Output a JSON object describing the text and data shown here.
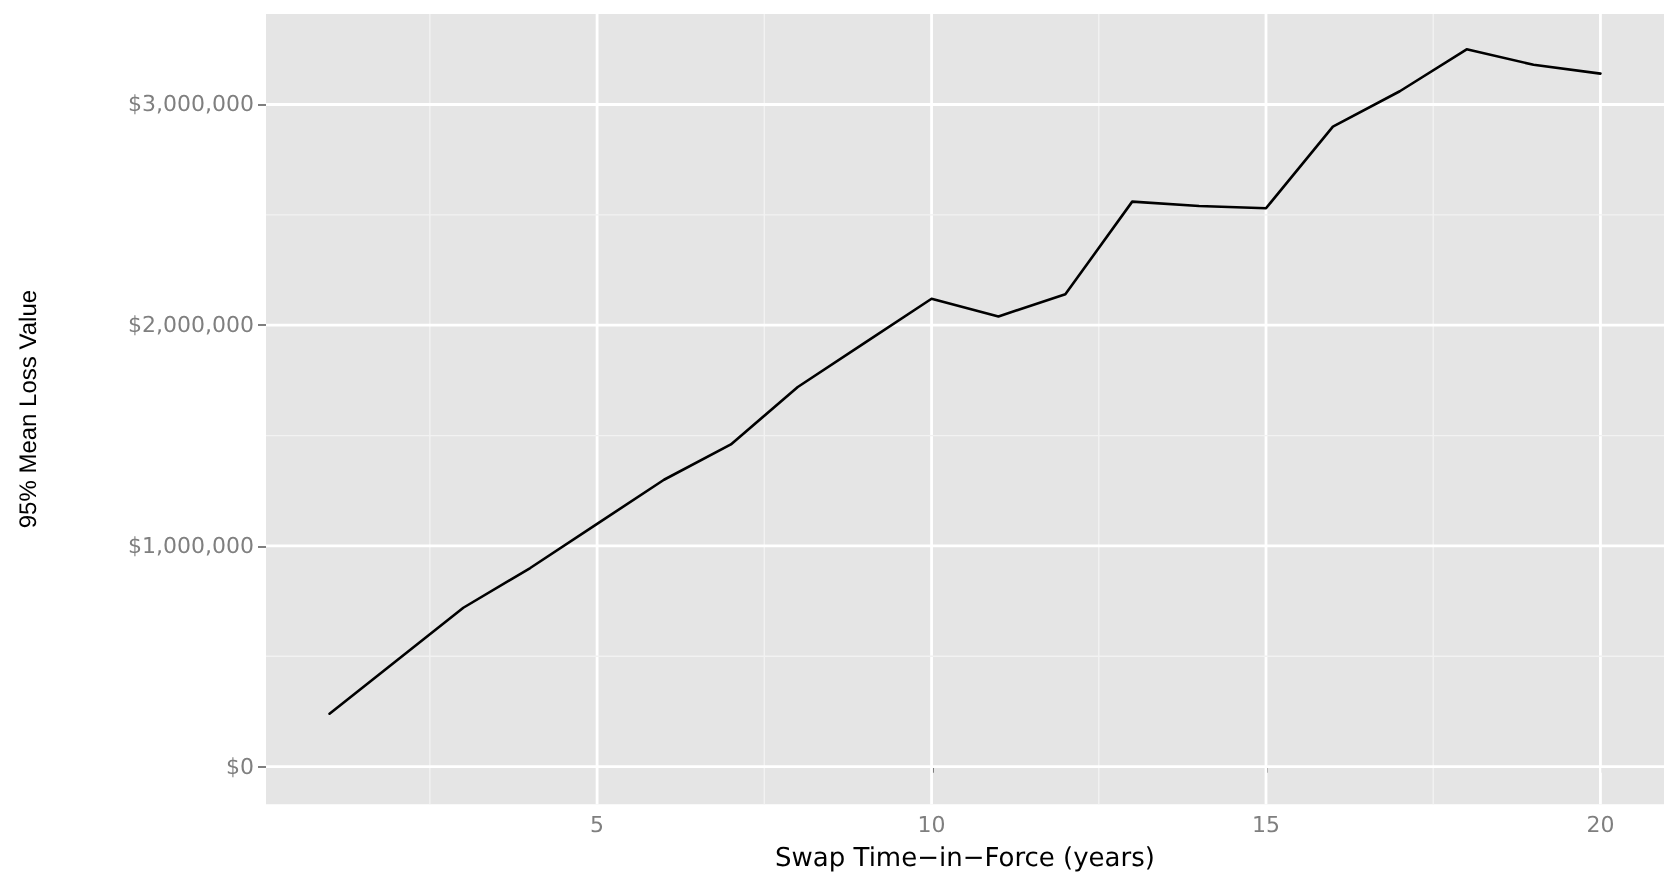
{
  "chart_data": {
    "type": "line",
    "xlabel": "Swap Time−in−Force (years)",
    "ylabel": "95% Mean Loss Value",
    "x": [
      1,
      2,
      3,
      4,
      5,
      6,
      7,
      8,
      9,
      10,
      11,
      12,
      13,
      14,
      15,
      16,
      17,
      18,
      19,
      20
    ],
    "series": [
      {
        "color": "#000000",
        "values": [
          240000,
          480000,
          720000,
          900000,
          1100000,
          1300000,
          1460000,
          1720000,
          1920000,
          2120000,
          2040000,
          2140000,
          2560000,
          2540000,
          2530000,
          2900000,
          3060000,
          3250000,
          3180000,
          3140000
        ]
      }
    ],
    "xlim": [
      0.05,
      20.95
    ],
    "xticks": [
      {
        "value": 2.5,
        "label": null
      },
      5,
      {
        "value": 7.5,
        "label": null
      },
      10,
      {
        "value": 12.5,
        "label": null
      },
      15,
      {
        "value": 17.5,
        "label": null
      },
      20
    ],
    "ylim": [
      -170000,
      3410000
    ],
    "yticks": [
      {
        "value": 0,
        "label": "$0"
      },
      {
        "value": 500000,
        "label": null
      },
      {
        "value": 1000000,
        "label": "$1,000,000"
      },
      {
        "value": 1500000,
        "label": null
      },
      {
        "value": 2000000,
        "label": "$2,000,000"
      },
      {
        "value": 2500000,
        "label": null
      },
      {
        "value": 3000000,
        "label": "$3,000,000"
      }
    ],
    "grid": true,
    "marker": "none",
    "line_style": "solid"
  }
}
